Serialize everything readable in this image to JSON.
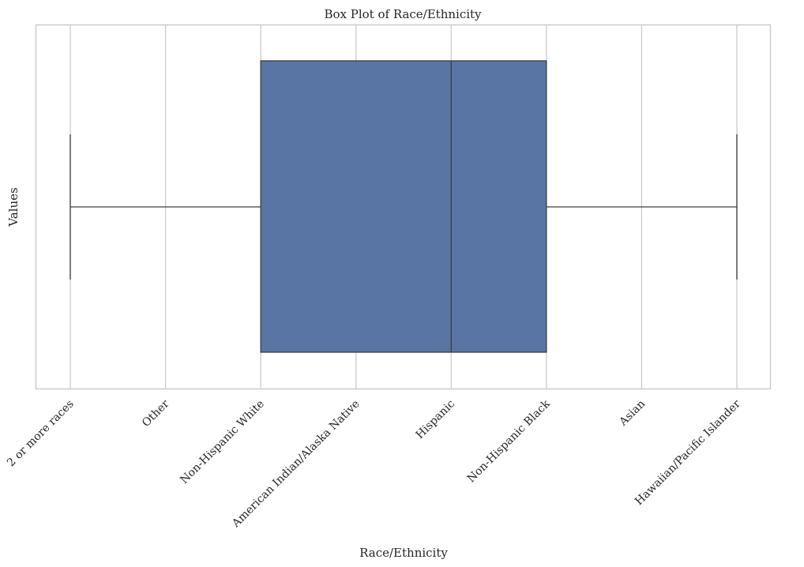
{
  "chart_data": {
    "type": "box",
    "title": "Box Plot of Race/Ethnicity",
    "xlabel": "Race/Ethnicity",
    "ylabel": "Values",
    "categories": [
      "2 or more races",
      "Other",
      "Non-Hispanic White",
      "American Indian/Alaska Native",
      "Hispanic",
      "Non-Hispanic Black",
      "Asian",
      "Hawaiian/Pacific Islander"
    ],
    "box": {
      "whisker_low": "2 or more races",
      "q1": "Non-Hispanic White",
      "median": "Hispanic",
      "q3": "Non-Hispanic Black",
      "whisker_high": "Hawaiian/Pacific Islander"
    },
    "orientation": "horizontal",
    "grid": true,
    "colors": {
      "box": "#5875a4",
      "line": "#3d3d3d",
      "grid": "#cccccc",
      "frame": "#cccccc"
    }
  }
}
